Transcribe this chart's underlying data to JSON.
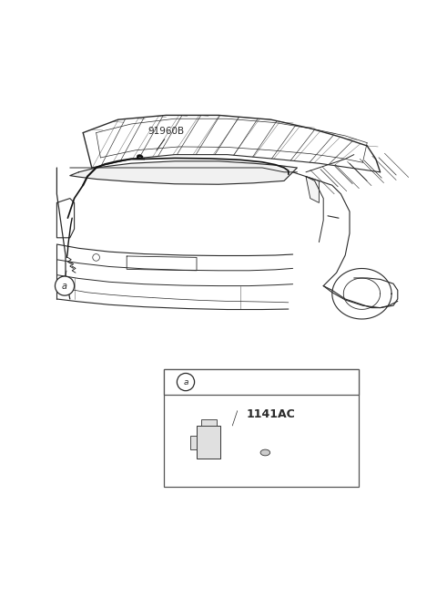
{
  "bg_color": "#ffffff",
  "line_color": "#2a2a2a",
  "part_label_main": "91960B",
  "part_label_sub": "1141AC",
  "connector_label": "a",
  "fig_width": 4.8,
  "fig_height": 6.56,
  "dpi": 100
}
